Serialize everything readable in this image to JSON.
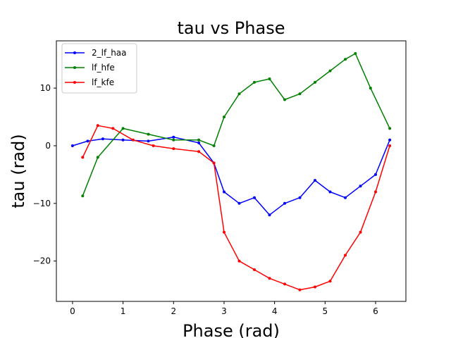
{
  "chart_data": {
    "type": "line",
    "title": "tau vs Phase",
    "xlabel": "Phase (rad)",
    "ylabel": "tau (rad)",
    "xlim": [
      -0.32,
      6.6
    ],
    "ylim": [
      -27,
      18.2
    ],
    "xticks": [
      0,
      1,
      2,
      3,
      4,
      5,
      6
    ],
    "yticks": [
      -20,
      -10,
      0,
      10
    ],
    "grid": false,
    "legend_position": "top-left",
    "series": [
      {
        "name": "2_lf_haa",
        "color": "#0000ff",
        "x": [
          0.0,
          0.3,
          0.6,
          1.0,
          1.5,
          2.0,
          2.5,
          2.8,
          3.0,
          3.3,
          3.6,
          3.9,
          4.2,
          4.5,
          4.8,
          5.1,
          5.4,
          5.7,
          6.0,
          6.28
        ],
        "y": [
          0.0,
          0.8,
          1.2,
          1.0,
          0.8,
          1.5,
          0.5,
          -3.0,
          -8.0,
          -10.0,
          -9.0,
          -12.0,
          -10.0,
          -9.0,
          -6.0,
          -8.0,
          -9.0,
          -7.0,
          -5.0,
          1.0
        ]
      },
      {
        "name": "lf_hfe",
        "color": "#008000",
        "x": [
          0.2,
          0.5,
          1.0,
          1.5,
          2.0,
          2.5,
          2.8,
          3.0,
          3.3,
          3.6,
          3.9,
          4.2,
          4.5,
          4.8,
          5.1,
          5.4,
          5.6,
          5.9,
          6.28
        ],
        "y": [
          -8.7,
          -2.0,
          3.0,
          2.0,
          1.0,
          1.0,
          0.0,
          5.0,
          9.0,
          11.0,
          11.6,
          8.0,
          9.0,
          11.0,
          13.0,
          15.0,
          16.0,
          10.0,
          3.0
        ]
      },
      {
        "name": "lf_kfe",
        "color": "#ff0000",
        "x": [
          0.2,
          0.5,
          0.8,
          1.2,
          1.6,
          2.0,
          2.5,
          2.8,
          3.0,
          3.3,
          3.6,
          3.9,
          4.2,
          4.5,
          4.8,
          5.1,
          5.4,
          5.7,
          6.0,
          6.28
        ],
        "y": [
          -2.0,
          3.5,
          3.0,
          1.0,
          0.0,
          -0.5,
          -1.0,
          -3.0,
          -15.0,
          -20.0,
          -21.5,
          -23.0,
          -24.0,
          -25.0,
          -24.5,
          -23.5,
          -19.0,
          -15.0,
          -8.0,
          0.0
        ]
      }
    ]
  }
}
